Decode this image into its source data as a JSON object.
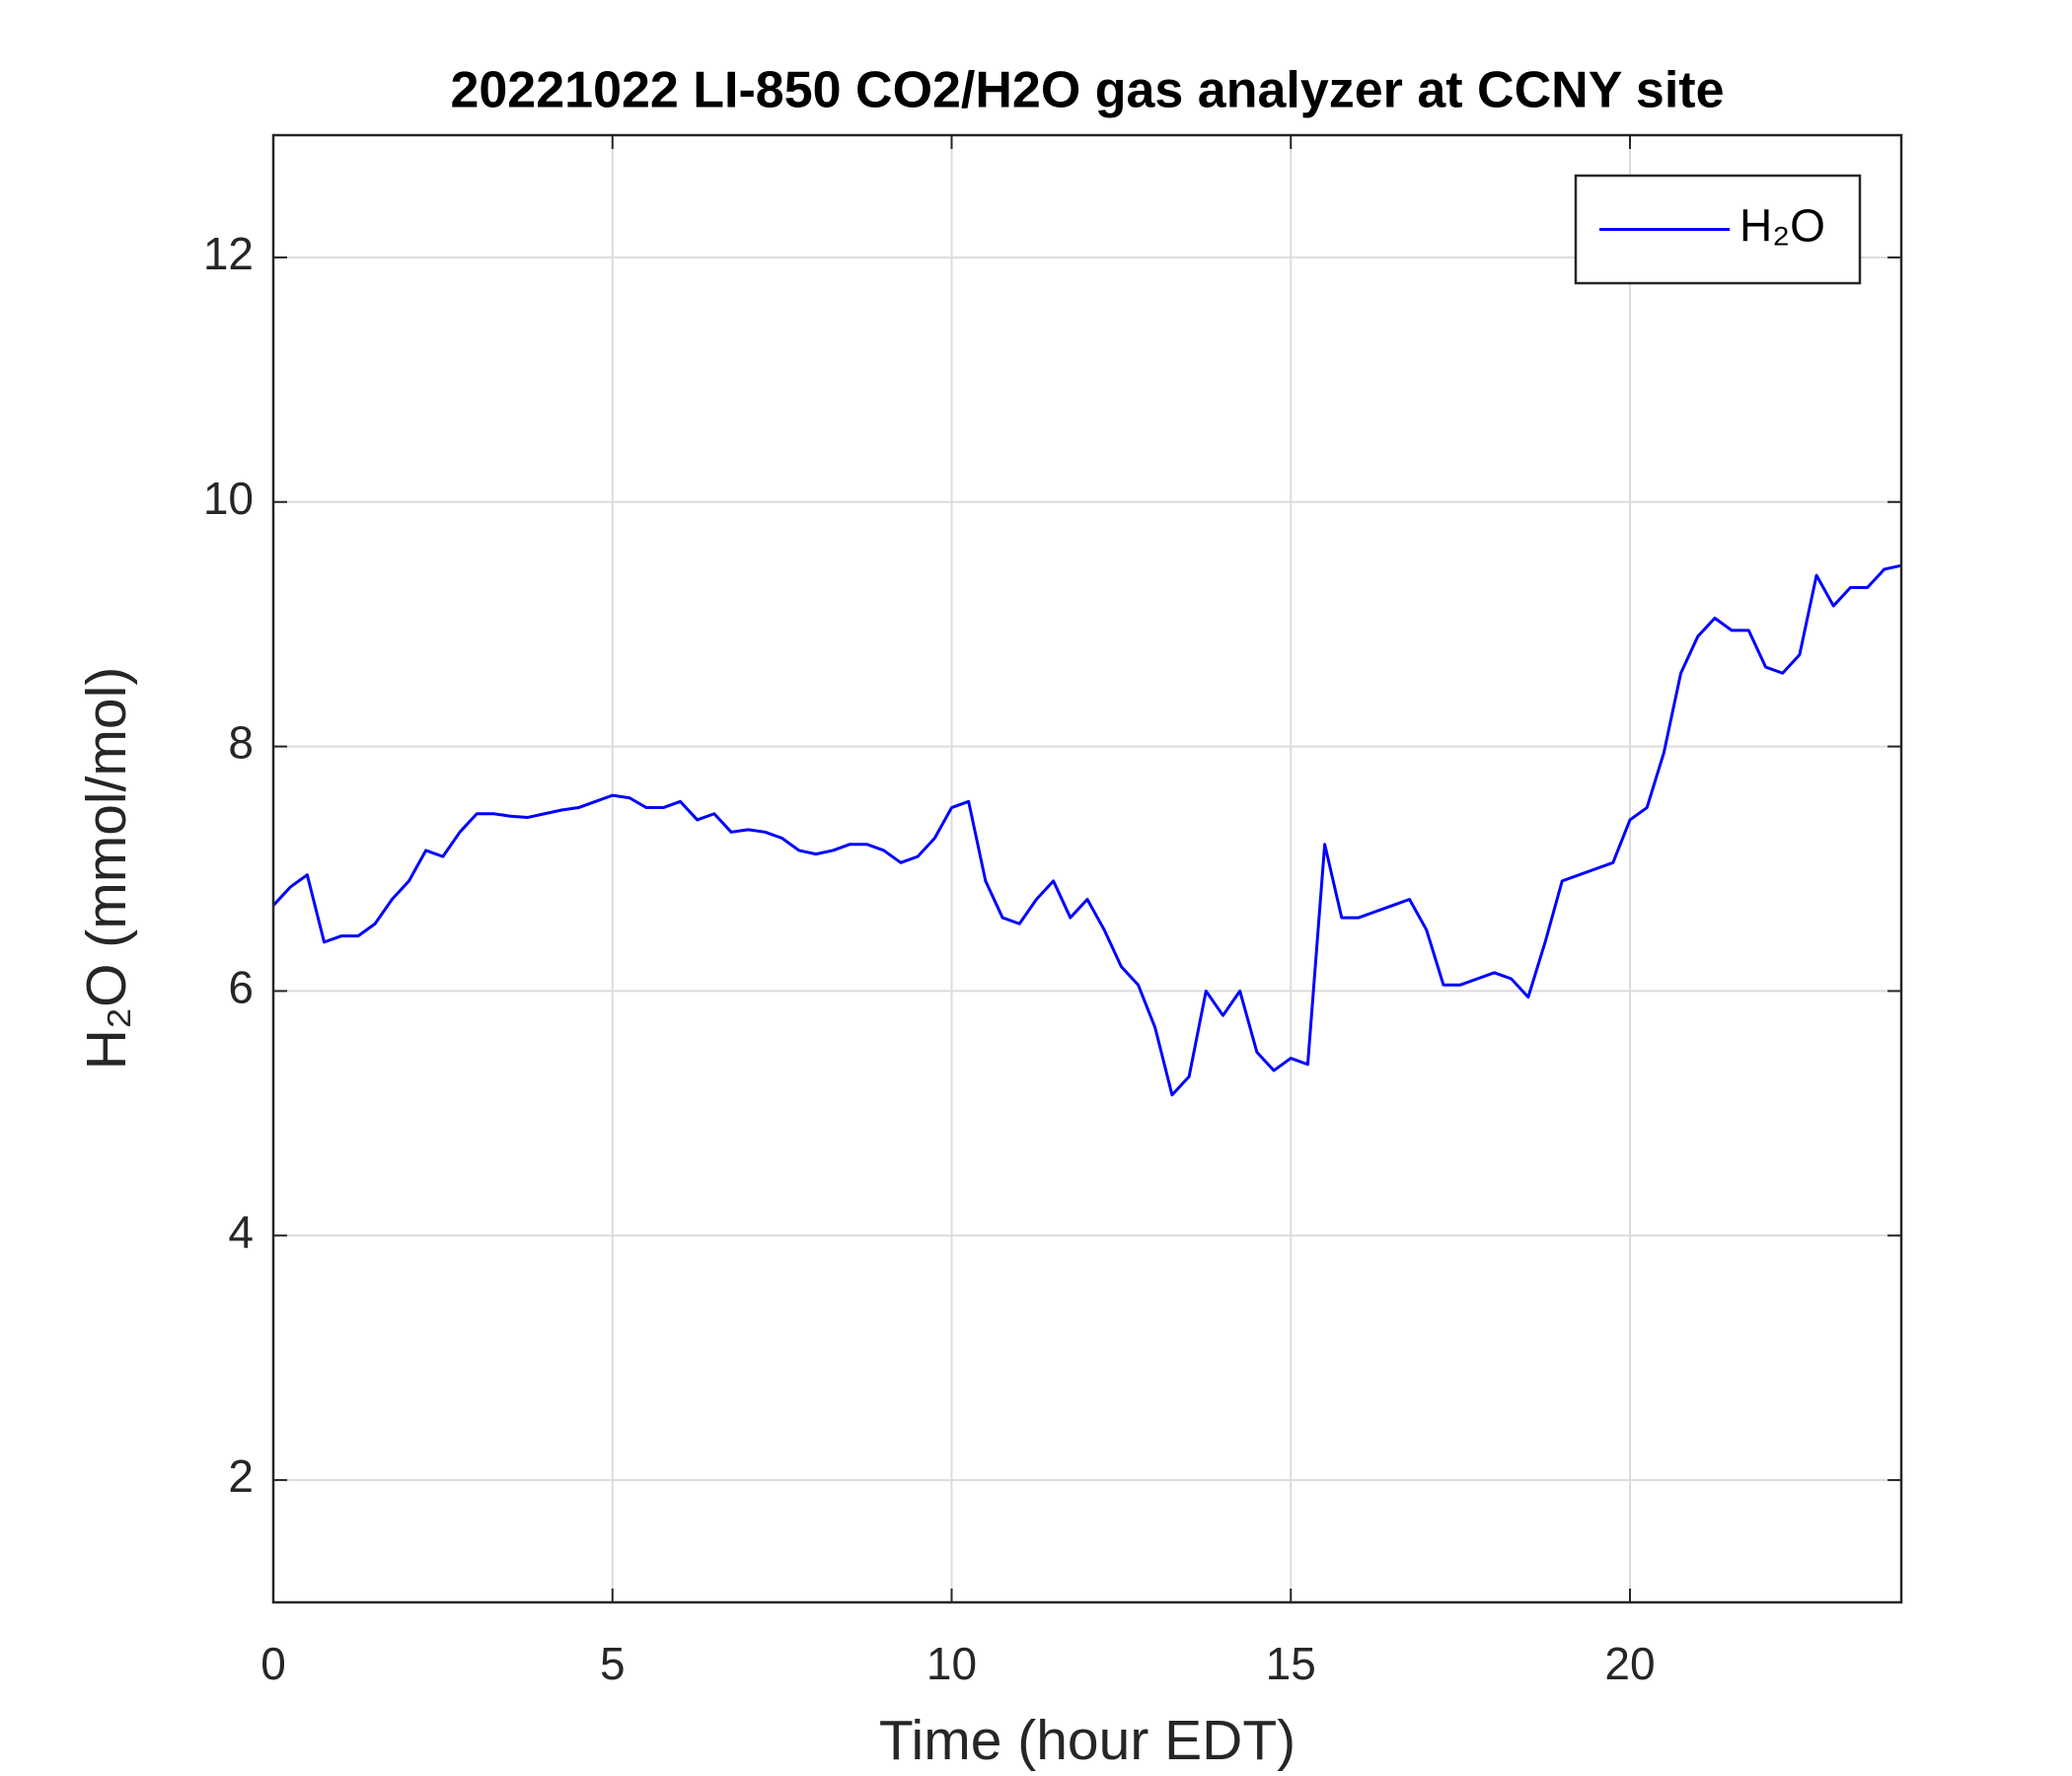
{
  "chart_data": {
    "type": "line",
    "title": "20221022 LI-850 CO2/H2O gas analyzer at CCNY site",
    "xlabel": "Time (hour EDT)",
    "ylabel": "H₂O (mmol/mol)",
    "xlim": [
      0,
      24
    ],
    "ylim": [
      1,
      13
    ],
    "xticks": [
      0,
      5,
      10,
      15,
      20
    ],
    "yticks": [
      2,
      4,
      6,
      8,
      10,
      12
    ],
    "grid": true,
    "legend": "upper right",
    "x": [
      0,
      0.25,
      0.5,
      0.75,
      1,
      1.25,
      1.5,
      1.75,
      2,
      2.25,
      2.5,
      2.75,
      3,
      3.25,
      3.5,
      3.75,
      4,
      4.25,
      4.5,
      4.75,
      5,
      5.25,
      5.5,
      5.75,
      6,
      6.25,
      6.5,
      6.75,
      7,
      7.25,
      7.5,
      7.75,
      8,
      8.25,
      8.5,
      8.75,
      9,
      9.25,
      9.5,
      9.75,
      10,
      10.25,
      10.5,
      10.75,
      11,
      11.25,
      11.5,
      11.75,
      12,
      12.25,
      12.5,
      12.75,
      13,
      13.25,
      13.5,
      13.75,
      14,
      14.25,
      14.5,
      14.75,
      15,
      15.25,
      15.5,
      15.75,
      16,
      16.25,
      16.5,
      16.75,
      17,
      17.25,
      17.5,
      17.75,
      18,
      18.25,
      18.5,
      18.75,
      19,
      19.25,
      19.5,
      19.75,
      20,
      20.25,
      20.5,
      20.75,
      21,
      21.25,
      21.5,
      21.75,
      22,
      22.25,
      22.5,
      22.75,
      23,
      23.25,
      23.5,
      23.75,
      24
    ],
    "series": [
      {
        "name": "H₂O",
        "color": "#0000ff",
        "values": [
          6.7,
          6.85,
          6.95,
          6.4,
          6.45,
          6.45,
          6.55,
          6.75,
          6.9,
          7.15,
          7.1,
          7.3,
          7.45,
          7.45,
          7.43,
          7.42,
          7.45,
          7.48,
          7.5,
          7.55,
          7.6,
          7.58,
          7.5,
          7.5,
          7.55,
          7.4,
          7.45,
          7.3,
          7.32,
          7.3,
          7.25,
          7.15,
          7.12,
          7.15,
          7.2,
          7.2,
          7.15,
          7.05,
          7.1,
          7.25,
          7.5,
          7.55,
          6.9,
          6.6,
          6.55,
          6.75,
          6.9,
          6.6,
          6.75,
          6.5,
          6.2,
          6.05,
          5.7,
          5.15,
          5.3,
          6.0,
          5.8,
          6.0,
          5.5,
          5.35,
          5.45,
          5.4,
          7.2,
          6.6,
          6.6,
          6.65,
          6.7,
          6.75,
          6.5,
          6.05,
          6.05,
          6.1,
          6.15,
          6.1,
          5.95,
          6.4,
          6.9,
          6.95,
          7.0,
          7.05,
          7.4,
          7.5,
          7.95,
          8.6,
          8.9,
          9.05,
          8.95,
          8.95,
          8.65,
          8.6,
          8.75,
          9.4,
          9.15,
          9.3,
          9.3,
          9.45,
          9.48
        ]
      }
    ]
  }
}
